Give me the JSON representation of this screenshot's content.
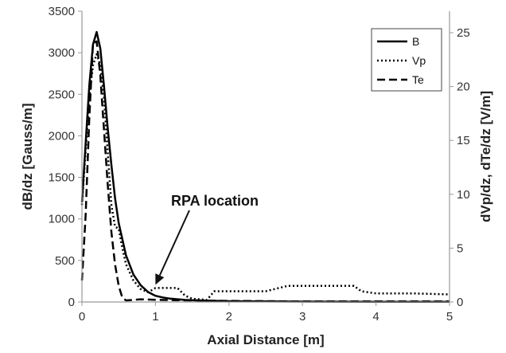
{
  "chart_data": {
    "type": "line",
    "xlabel": "Axial Distance [m]",
    "ylabel": "dB/dz [Gauss/m]",
    "y2label": "dVp/dz, dTe/dz [V/m]",
    "xlim": [
      0,
      5
    ],
    "ylim": [
      0,
      3500
    ],
    "y2lim": [
      0,
      27
    ],
    "xticks": [
      0,
      1,
      2,
      3,
      4,
      5
    ],
    "yticks": [
      0,
      500,
      1000,
      1500,
      2000,
      2500,
      3000,
      3500
    ],
    "y2ticks": [
      0,
      5,
      10,
      15,
      20,
      25
    ],
    "grid": false,
    "legend_position": "top-right",
    "series": [
      {
        "name": "B",
        "axis": "left",
        "style": "solid",
        "x": [
          0,
          0.05,
          0.1,
          0.15,
          0.2,
          0.25,
          0.3,
          0.35,
          0.4,
          0.45,
          0.5,
          0.6,
          0.7,
          0.8,
          0.9,
          1.0,
          1.1,
          1.2,
          1.4,
          1.6,
          2.0,
          3.0,
          4.0,
          5.0
        ],
        "values": [
          1200,
          1900,
          2600,
          3100,
          3250,
          3050,
          2600,
          2100,
          1650,
          1250,
          950,
          560,
          330,
          200,
          120,
          75,
          55,
          40,
          25,
          18,
          10,
          5,
          3,
          2
        ]
      },
      {
        "name": "Vp",
        "axis": "right",
        "style": "dotted",
        "x": [
          0,
          0.05,
          0.1,
          0.15,
          0.2,
          0.25,
          0.3,
          0.35,
          0.4,
          0.45,
          0.5,
          0.55,
          0.6,
          0.7,
          0.8,
          0.9,
          1.0,
          1.1,
          1.3,
          1.4,
          1.5,
          1.7,
          1.8,
          2.0,
          2.5,
          2.8,
          3.0,
          3.5,
          3.7,
          3.8,
          4.0,
          4.5,
          5.0
        ],
        "values": [
          9,
          14,
          19,
          22,
          23,
          22,
          19,
          14,
          9,
          7,
          6.8,
          5,
          3.5,
          2,
          1.2,
          0.9,
          1.3,
          1.3,
          1.3,
          0.6,
          0.3,
          0.2,
          1.0,
          1.0,
          1.0,
          1.5,
          1.5,
          1.5,
          1.5,
          1.0,
          0.8,
          0.8,
          0.7
        ]
      },
      {
        "name": "Te",
        "axis": "right",
        "style": "dashed",
        "x": [
          0,
          0.05,
          0.1,
          0.15,
          0.2,
          0.25,
          0.3,
          0.35,
          0.4,
          0.45,
          0.5,
          0.55,
          0.6,
          0.7,
          0.8,
          1.0,
          1.5,
          2.0,
          3.0,
          4.0,
          5.0
        ],
        "values": [
          2,
          8,
          17,
          24,
          24.2,
          21,
          16,
          11,
          6.5,
          3.5,
          1.5,
          0.4,
          0.15,
          0.2,
          0.25,
          0.2,
          0.15,
          0.1,
          0.05,
          0.05,
          0.05
        ]
      }
    ],
    "annotations": [
      {
        "text": "RPA location",
        "x": 1.0,
        "y2": 1.3
      }
    ]
  }
}
